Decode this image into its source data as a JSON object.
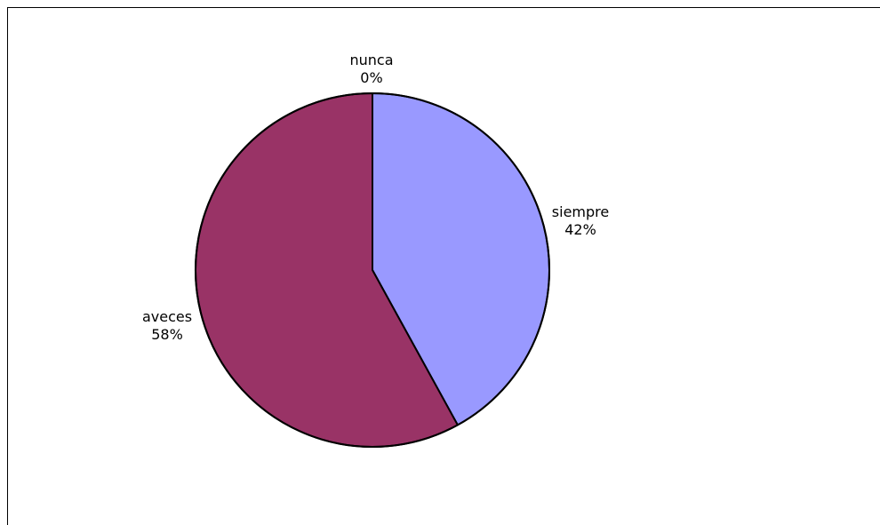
{
  "chart_data": {
    "type": "pie",
    "title": "",
    "slices": [
      {
        "label": "siempre",
        "percent_label": "42%",
        "value": 42,
        "color": "#9999ff"
      },
      {
        "label": "aveces",
        "percent_label": "58%",
        "value": 58,
        "color": "#993366"
      },
      {
        "label": "nunca",
        "percent_label": "0%",
        "value": 0,
        "color": "#ffffcc"
      }
    ],
    "start_angle_deg": 0,
    "direction": "clockwise",
    "edge_color": "#000000"
  }
}
